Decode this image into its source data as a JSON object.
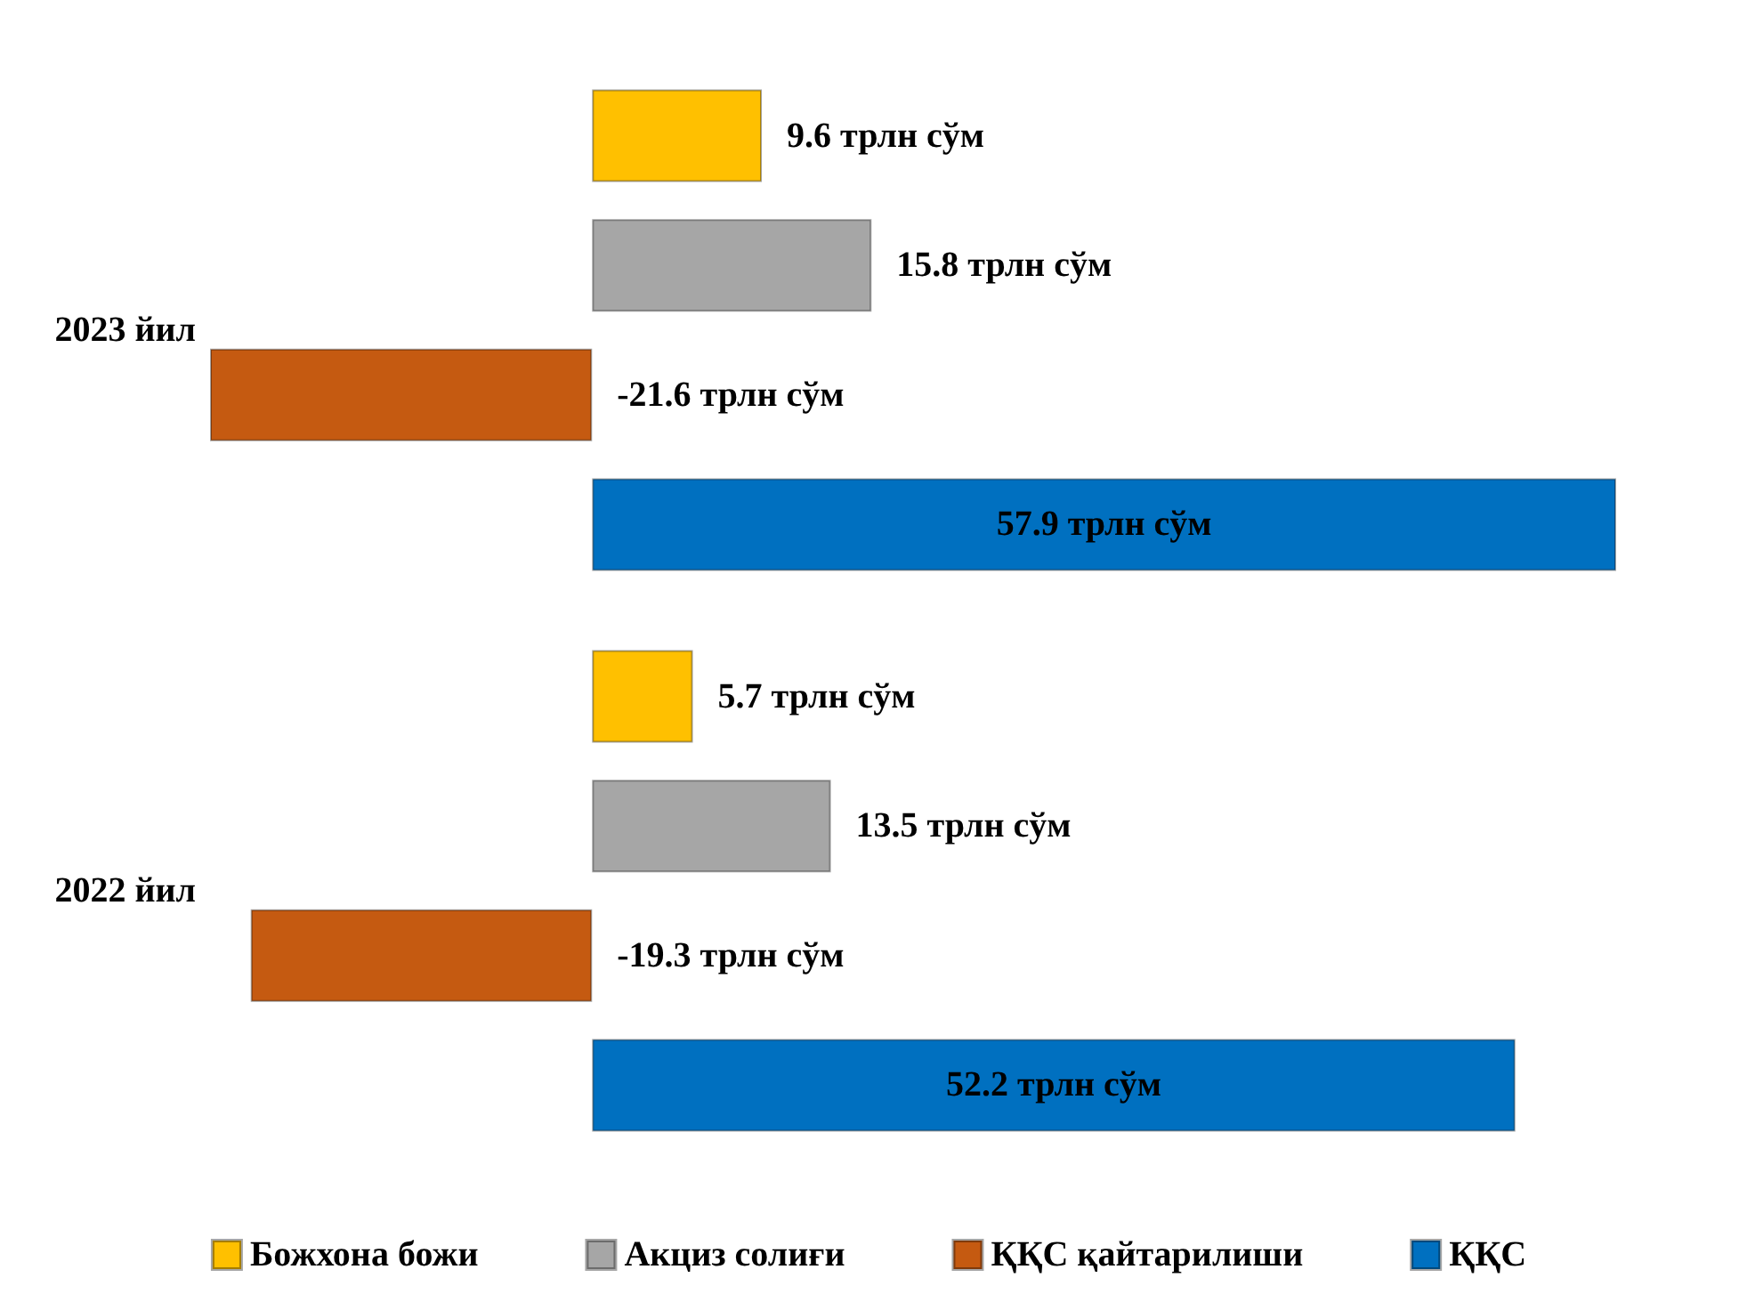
{
  "chart_data": {
    "type": "bar",
    "orientation": "horizontal",
    "categories": [
      "2023 йил",
      "2022 йил"
    ],
    "series": [
      {
        "name": "Божхона божи",
        "color": "#ffc000",
        "values": [
          9.6,
          5.7
        ],
        "value_labels": [
          "9.6 трлн сўм",
          "5.7 трлн сўм"
        ]
      },
      {
        "name": "Акциз солиғи",
        "color": "#a6a6a6",
        "values": [
          15.8,
          13.5
        ],
        "value_labels": [
          "15.8 трлн сўм",
          "13.5 трлн сўм"
        ]
      },
      {
        "name": "ҚҚС қайтарилиши",
        "color": "#c55a11",
        "values": [
          -21.6,
          -19.3
        ],
        "value_labels": [
          "-21.6 трлн сўм",
          "-19.3 трлн сўм"
        ]
      },
      {
        "name": "ҚҚС",
        "color": "#0070c0",
        "values": [
          57.9,
          52.2
        ],
        "value_labels": [
          "57.9 трлн сўм",
          "52.2 трлн сўм"
        ]
      }
    ],
    "legend": "bottom"
  }
}
